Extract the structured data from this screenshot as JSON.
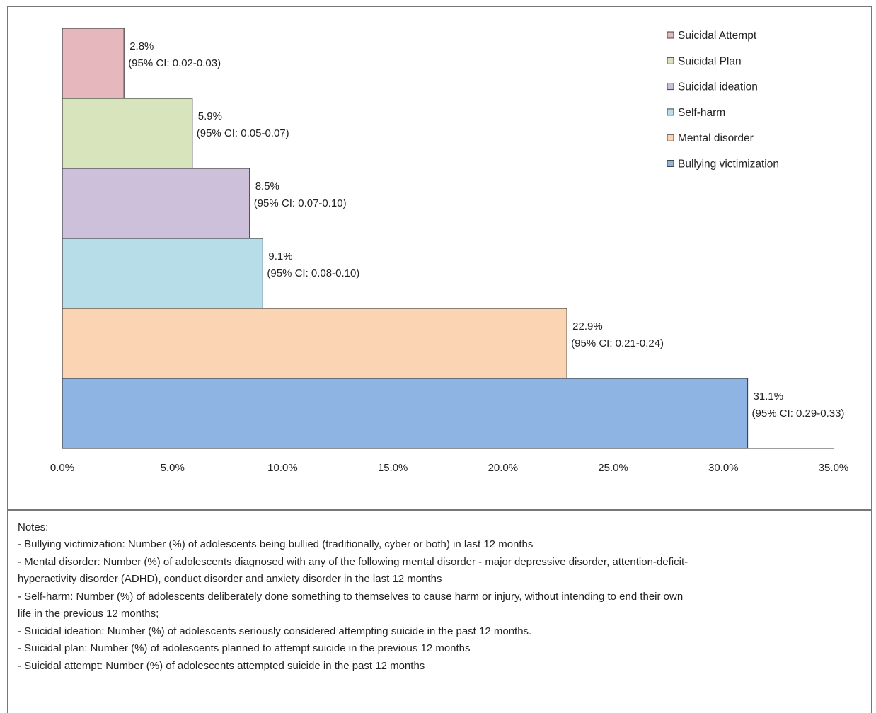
{
  "chart_data": {
    "type": "bar",
    "orientation": "horizontal",
    "categories": [
      "Suicidal Attempt",
      "Suicidal Plan",
      "Suicidal ideation",
      "Self-harm",
      "Mental disorder",
      "Bullying victimization"
    ],
    "values": [
      2.8,
      5.9,
      8.5,
      9.1,
      22.9,
      31.1
    ],
    "data_labels": [
      "2.8%",
      "5.9%",
      "8.5%",
      "9.1%",
      "22.9%",
      "31.1%"
    ],
    "ci_labels": [
      "(95% CI: 0.02-0.03)",
      "(95% CI: 0.05-0.07)",
      "(95% CI: 0.07-0.10)",
      "(95% CI: 0.08-0.10)",
      "(95% CI: 0.21-0.24)",
      "(95% CI: 0.29-0.33)"
    ],
    "colors": [
      "#e6b8bd",
      "#d8e4bc",
      "#ccc0da",
      "#b7dde8",
      "#fbd4b4",
      "#8db4e2"
    ],
    "x_ticks": [
      "0.0%",
      "5.0%",
      "10.0%",
      "15.0%",
      "20.0%",
      "25.0%",
      "30.0%",
      "35.0%"
    ],
    "xlim": [
      0,
      35
    ],
    "title": "",
    "xlabel": "",
    "ylabel": "",
    "grid": false,
    "legend": {
      "placement": "top-right",
      "entries": [
        "Suicidal Attempt",
        "Suicidal Plan",
        "Suicidal ideation",
        "Self-harm",
        "Mental disorder",
        "Bullying victimization"
      ]
    }
  },
  "notes": {
    "title": "Notes:",
    "lines": [
      "- Bullying victimization: Number (%) of adolescents being bullied (traditionally, cyber or both) in last 12 months",
      "- Mental disorder: Number (%) of adolescents diagnosed with any of the following mental disorder - major depressive disorder, attention-deficit-",
      "hyperactivity disorder (ADHD), conduct disorder and anxiety disorder in the last 12 months",
      "- Self-harm: Number (%) of adolescents deliberately done something to themselves to cause harm or injury, without intending to end  their own",
      "life in the previous 12 months;",
      "- Suicidal ideation: Number (%) of adolescents seriously considered attempting suicide in the past 12 months.",
      "- Suicidal plan: Number (%)  of adolescents planned to attempt suicide in the previous 12 months",
      "- Suicidal attempt: Number (%)  of adolescents attempted suicide in the past 12 months"
    ]
  }
}
